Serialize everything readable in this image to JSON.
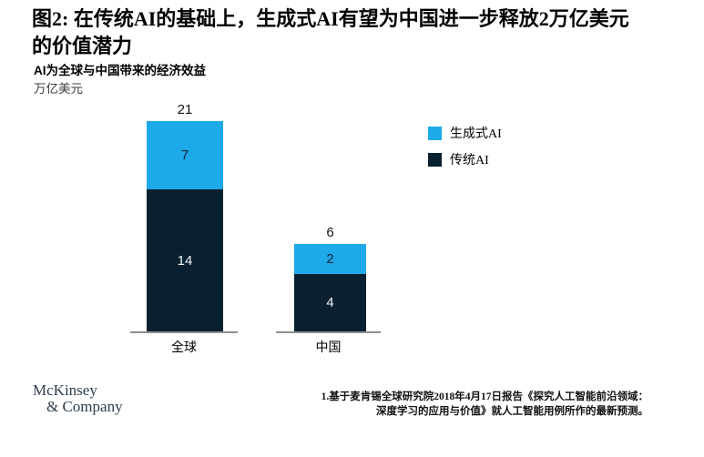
{
  "header": {
    "title": "图2: 在传统AI的基础上，生成式AI有望为中国进一步释放2万亿美元的价值潜力"
  },
  "chart_data": {
    "type": "bar",
    "stacked": true,
    "title": "AI为全球与中国带来的经济效益",
    "unit_label": "万亿美元",
    "xlabel": "",
    "ylabel": "万亿美元",
    "categories": [
      "全球",
      "中国"
    ],
    "series": [
      {
        "name": "生成式AI",
        "values": [
          7,
          2
        ],
        "color": "#1ea9e9"
      },
      {
        "name": "传统AI",
        "values": [
          14,
          4
        ],
        "color": "#08202f"
      }
    ],
    "totals": [
      21,
      6
    ],
    "legend_position": "right",
    "value_labels": "inside",
    "grid": false,
    "note": "bars drawn without common y-scale; totals labeled above bars"
  },
  "legend": {
    "items": [
      {
        "label": "生成式AI",
        "color": "#1ea9e9"
      },
      {
        "label": "传统AI",
        "color": "#08202f"
      }
    ]
  },
  "footer": {
    "logo_line1": "McKinsey",
    "logo_line2": "& Company",
    "footnote_line1": "1.基于麦肯锡全球研究院2018年4月17日报告《探究人工智能前沿领域：",
    "footnote_line2": "深度学习的应用与价值》就人工智能用例所作的最新预测。"
  },
  "colors": {
    "generative_ai": "#1ea9e9",
    "traditional_ai": "#08202f",
    "axis_line": "#8f8f8f",
    "logo": "#2e3d4c"
  }
}
